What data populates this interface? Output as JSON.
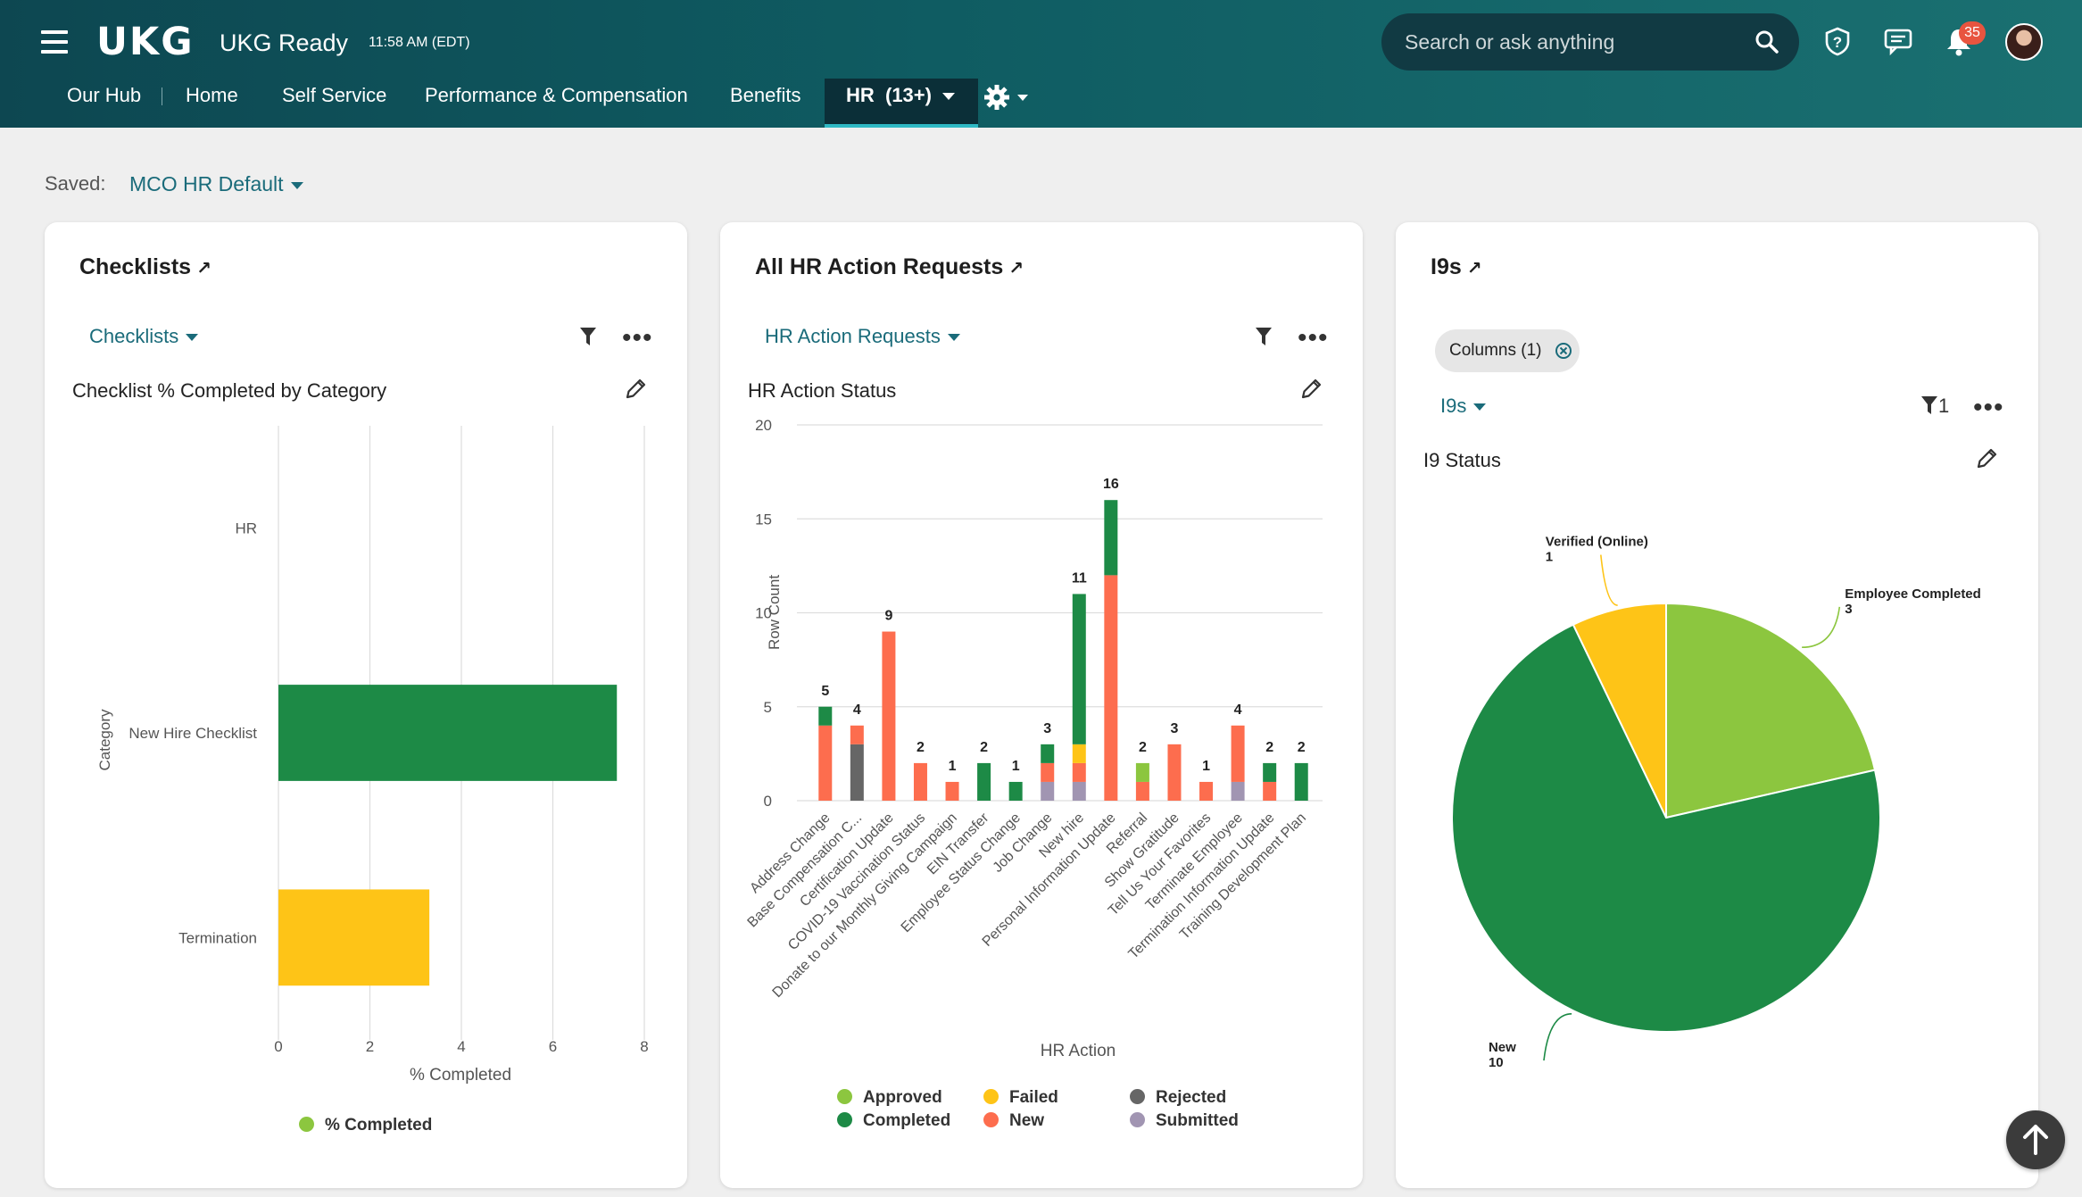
{
  "header": {
    "logo": "UKG",
    "product": "UKG Ready",
    "time": "11:58 AM (EDT)",
    "search_placeholder": "Search or ask anything",
    "notification_count": "35",
    "icons": [
      "menu-icon",
      "search-icon",
      "help-icon",
      "chat-icon",
      "bell-icon",
      "gear-icon"
    ]
  },
  "nav": {
    "items": [
      "Our Hub",
      "Home",
      "Self Service",
      "Performance & Compensation",
      "Benefits"
    ],
    "active": "HR  (13+)"
  },
  "saved": {
    "label": "Saved:",
    "value": "MCO HR Default"
  },
  "colors": {
    "header": "#0f5c62",
    "accent": "#1a6b7a",
    "green_dark": "#1d8a46",
    "green_light": "#8cc63f",
    "orange": "#fd6d4e",
    "yellow": "#fec417",
    "gray": "#666666",
    "purple": "#a195b2"
  },
  "cards": {
    "checklists": {
      "title": "Checklists",
      "dropdown": "Checklists",
      "subtitle": "Checklist % Completed by Category"
    },
    "hr_actions": {
      "title": "All HR Action Requests",
      "dropdown": "HR Action Requests",
      "subtitle": "HR Action Status"
    },
    "i9s": {
      "title": "I9s",
      "chip": "Columns (1)",
      "dropdown": "I9s",
      "filter_count": "1",
      "subtitle": "I9 Status"
    }
  },
  "chart_data": [
    {
      "type": "bar",
      "orientation": "horizontal",
      "categories": [
        "HR",
        "New Hire Checklist",
        "Termination"
      ],
      "values": [
        0,
        7.4,
        3.3
      ],
      "bar_colors": [
        "#1d8a46",
        "#1d8a46",
        "#fec417"
      ],
      "xlabel": "% Completed",
      "ylabel": "Category",
      "xlim": [
        0,
        8
      ],
      "xticks": [
        0,
        2,
        4,
        6,
        8
      ],
      "legend": [
        "% Completed"
      ],
      "legend_color": "#8cc63f",
      "grid": true
    },
    {
      "type": "bar",
      "stacked": true,
      "categories": [
        "Address Change",
        "Base Compensation C...",
        "Certification Update",
        "COVID-19 Vaccination Status",
        "Donate to our Monthly Giving Campaign",
        "EIN Transfer",
        "Employee Status Change",
        "Job Change",
        "New hire",
        "Personal Information Update",
        "Referral",
        "Show Gratitude",
        "Tell Us Your Favorites",
        "Terminate Employee",
        "Termination Information Update",
        "Training Development Plan"
      ],
      "series": [
        {
          "name": "Submitted",
          "color": "#a195b2",
          "values": [
            0,
            0,
            0,
            0,
            0,
            0,
            0,
            1,
            1,
            0,
            0,
            0,
            0,
            1,
            0,
            0
          ]
        },
        {
          "name": "Rejected",
          "color": "#666666",
          "values": [
            0,
            3,
            0,
            0,
            0,
            0,
            0,
            0,
            0,
            0,
            0,
            0,
            0,
            0,
            0,
            0
          ]
        },
        {
          "name": "New",
          "color": "#fd6d4e",
          "values": [
            4,
            1,
            9,
            2,
            1,
            0,
            0,
            1,
            1,
            12,
            1,
            3,
            1,
            3,
            1,
            0
          ]
        },
        {
          "name": "Failed",
          "color": "#fec417",
          "values": [
            0,
            0,
            0,
            0,
            0,
            0,
            0,
            0,
            1,
            0,
            0,
            0,
            0,
            0,
            0,
            0
          ]
        },
        {
          "name": "Approved",
          "color": "#8cc63f",
          "values": [
            0,
            0,
            0,
            0,
            0,
            0,
            0,
            0,
            0,
            0,
            1,
            0,
            0,
            0,
            0,
            0
          ]
        },
        {
          "name": "Completed",
          "color": "#1d8a46",
          "values": [
            1,
            0,
            0,
            0,
            0,
            2,
            1,
            1,
            8,
            4,
            0,
            0,
            0,
            0,
            1,
            2
          ]
        }
      ],
      "totals": [
        5,
        4,
        9,
        2,
        1,
        2,
        1,
        3,
        11,
        16,
        2,
        3,
        1,
        4,
        2,
        2
      ],
      "xlabel": "HR Action",
      "ylabel": "Row Count",
      "ylim": [
        0,
        20
      ],
      "yticks": [
        0,
        5,
        10,
        15,
        20
      ],
      "legend_order": [
        "Approved",
        "Completed",
        "Failed",
        "New",
        "Rejected",
        "Submitted"
      ],
      "grid": true
    },
    {
      "type": "pie",
      "slices": [
        {
          "label": "Employee Completed",
          "value": 3,
          "color": "#8cc63f"
        },
        {
          "label": "New",
          "value": 10,
          "color": "#1d8a46"
        },
        {
          "label": "Verified (Online)",
          "value": 1,
          "color": "#fec417"
        }
      ]
    }
  ]
}
